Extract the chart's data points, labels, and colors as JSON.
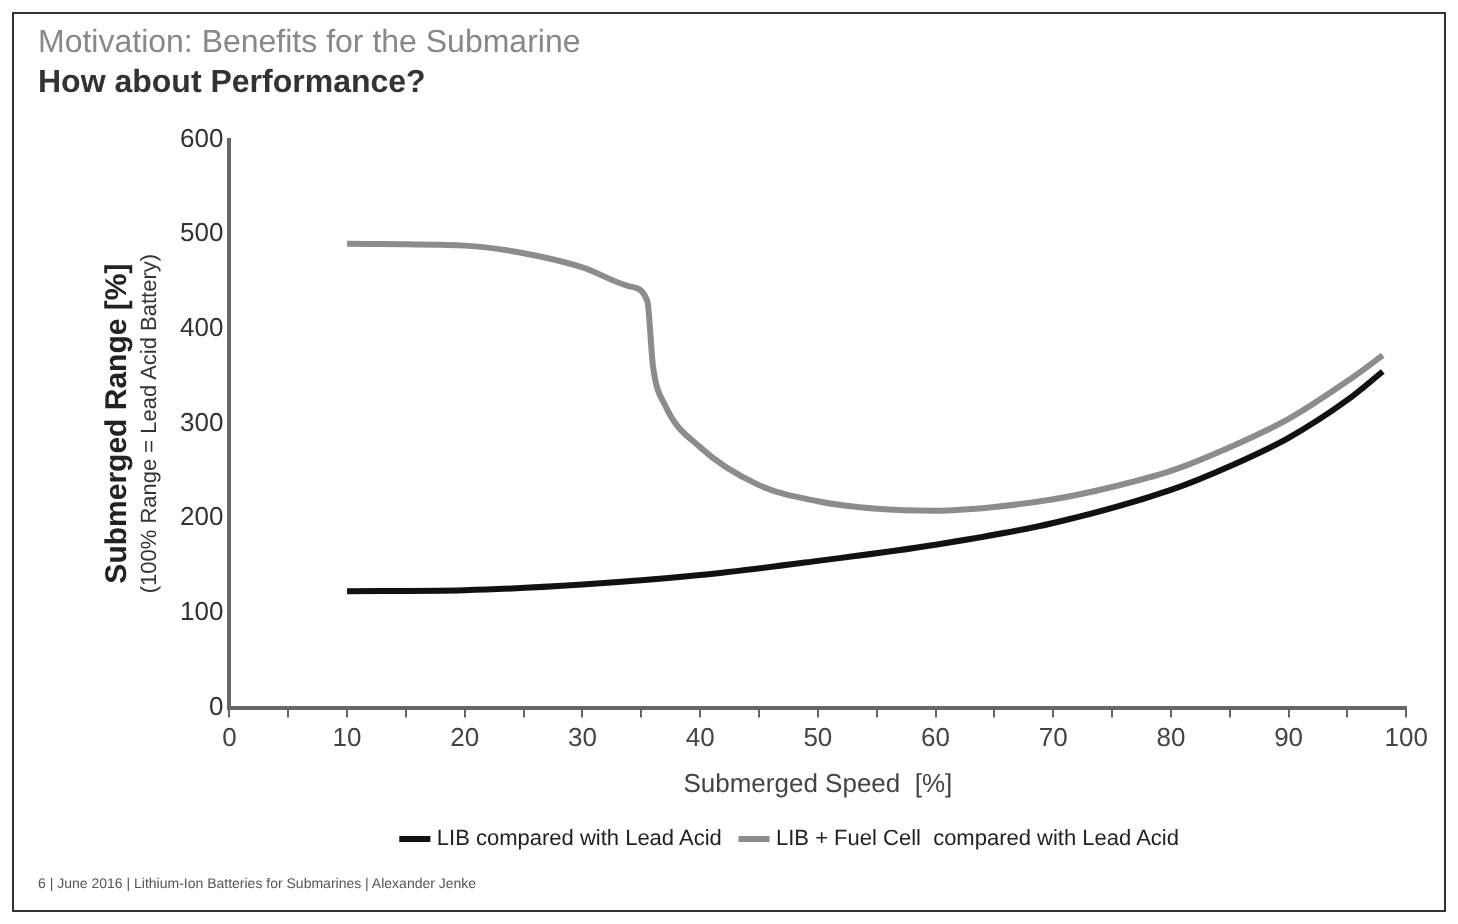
{
  "chart_data": {
    "type": "line",
    "title": "Motivation: Benefits for the Submarine",
    "subtitle": "How about Performance?",
    "xlabel": "Submerged Speed  [%]",
    "ylabel": "Submerged Range [%]\n(100% Range = Lead Acid Battery)",
    "xlim": [
      0,
      100
    ],
    "xticks": [
      0,
      {
        "value": 5,
        "label": null
      },
      10,
      {
        "value": 15,
        "label": null
      },
      20,
      {
        "value": 25,
        "label": null
      },
      30,
      {
        "value": 35,
        "label": null
      },
      40,
      {
        "value": 45,
        "label": null
      },
      50,
      {
        "value": 55,
        "label": null
      },
      60,
      {
        "value": 65,
        "label": null
      },
      70,
      {
        "value": 75,
        "label": null
      },
      80,
      {
        "value": 85,
        "label": null
      },
      90,
      {
        "value": 95,
        "label": null
      },
      100
    ],
    "ylim": [
      0,
      600
    ],
    "yticks": [
      0,
      100,
      200,
      300,
      400,
      500,
      600
    ],
    "grid": false,
    "legend": "bottom",
    "marker": "none",
    "line_style": "solid",
    "series": [
      {
        "name": "LIB compared with Lead Acid",
        "color": "#111111",
        "x": [
          10,
          20,
          30,
          40,
          50,
          60,
          70,
          80,
          85,
          90,
          95,
          98
        ],
        "values": [
          123,
          124,
          130,
          140,
          155,
          172,
          195,
          230,
          255,
          285,
          325,
          355
        ]
      },
      {
        "name": "LIB + Fuel Cell  compared with Lead Acid",
        "color": "#8c8c8c",
        "x": [
          10,
          20,
          25,
          30,
          34,
          35.5,
          36,
          37,
          40,
          45,
          50,
          55,
          60,
          65,
          70,
          75,
          80,
          85,
          90,
          95,
          98
        ],
        "values": [
          490,
          488,
          480,
          465,
          445,
          430,
          360,
          320,
          275,
          235,
          218,
          210,
          208,
          212,
          220,
          233,
          250,
          275,
          305,
          345,
          372
        ]
      }
    ],
    "annotations": [
      "6 | June 2016 | Lithium-Ion Batteries for Submarines | Alexander Jenke"
    ]
  }
}
